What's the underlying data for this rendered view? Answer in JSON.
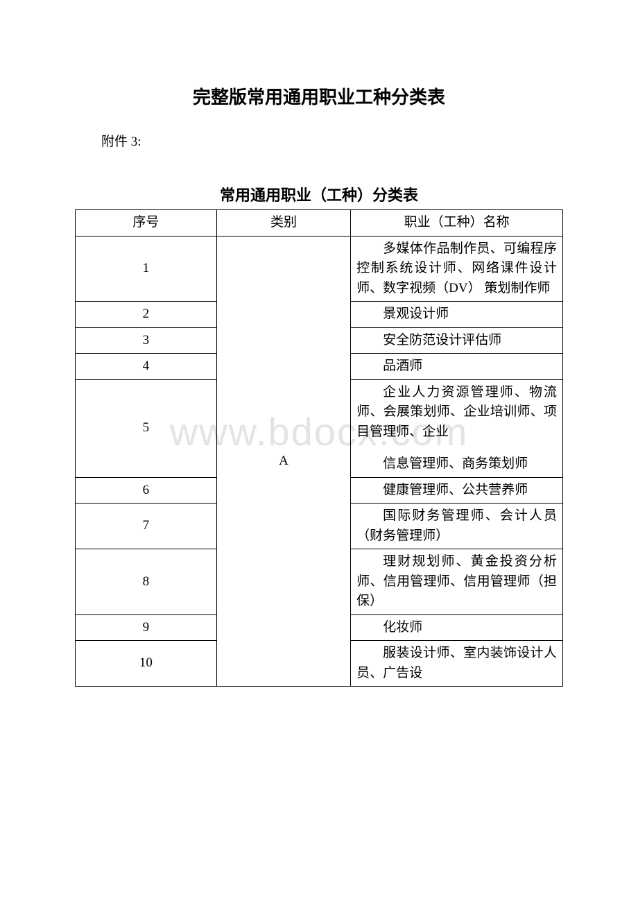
{
  "watermark": "www.bdocx.com",
  "doc_title": "完整版常用通用职业工种分类表",
  "attachment_label": "附件 3:",
  "table_title": "常用通用职业（工种）分类表",
  "headers": {
    "seq": "序号",
    "category": "类别",
    "name": "职业（工种）名称"
  },
  "category_A": "A",
  "rows": [
    {
      "seq": "1",
      "desc": "多媒体作品制作员、可编程序控制系统设计师、网络课件设计师、数字视频（DV） 策划制作师"
    },
    {
      "seq": "2",
      "desc": "景观设计师"
    },
    {
      "seq": "3",
      "desc": "安全防范设计评估师"
    },
    {
      "seq": "4",
      "desc": "品酒师"
    },
    {
      "seq": "5",
      "desc_p1": "企业人力资源管理师、物流师、会展策划师、企业培训师、项目管理师、企业",
      "desc_p2": "信息管理师、商务策划师"
    },
    {
      "seq": "6",
      "desc": "健康管理师、公共营养师"
    },
    {
      "seq": "7",
      "desc": "国际财务管理师、会计人员（财务管理师）"
    },
    {
      "seq": "8",
      "desc": "理财规划师、黄金投资分析师、信用管理师、信用管理师（担保）"
    },
    {
      "seq": "9",
      "desc": "化妆师"
    },
    {
      "seq": "10",
      "desc": "服装设计师、室内装饰设计人员、广告设"
    }
  ],
  "colors": {
    "text": "#000000",
    "background": "#ffffff",
    "border": "#000000",
    "watermark": "#e4e4e4"
  }
}
